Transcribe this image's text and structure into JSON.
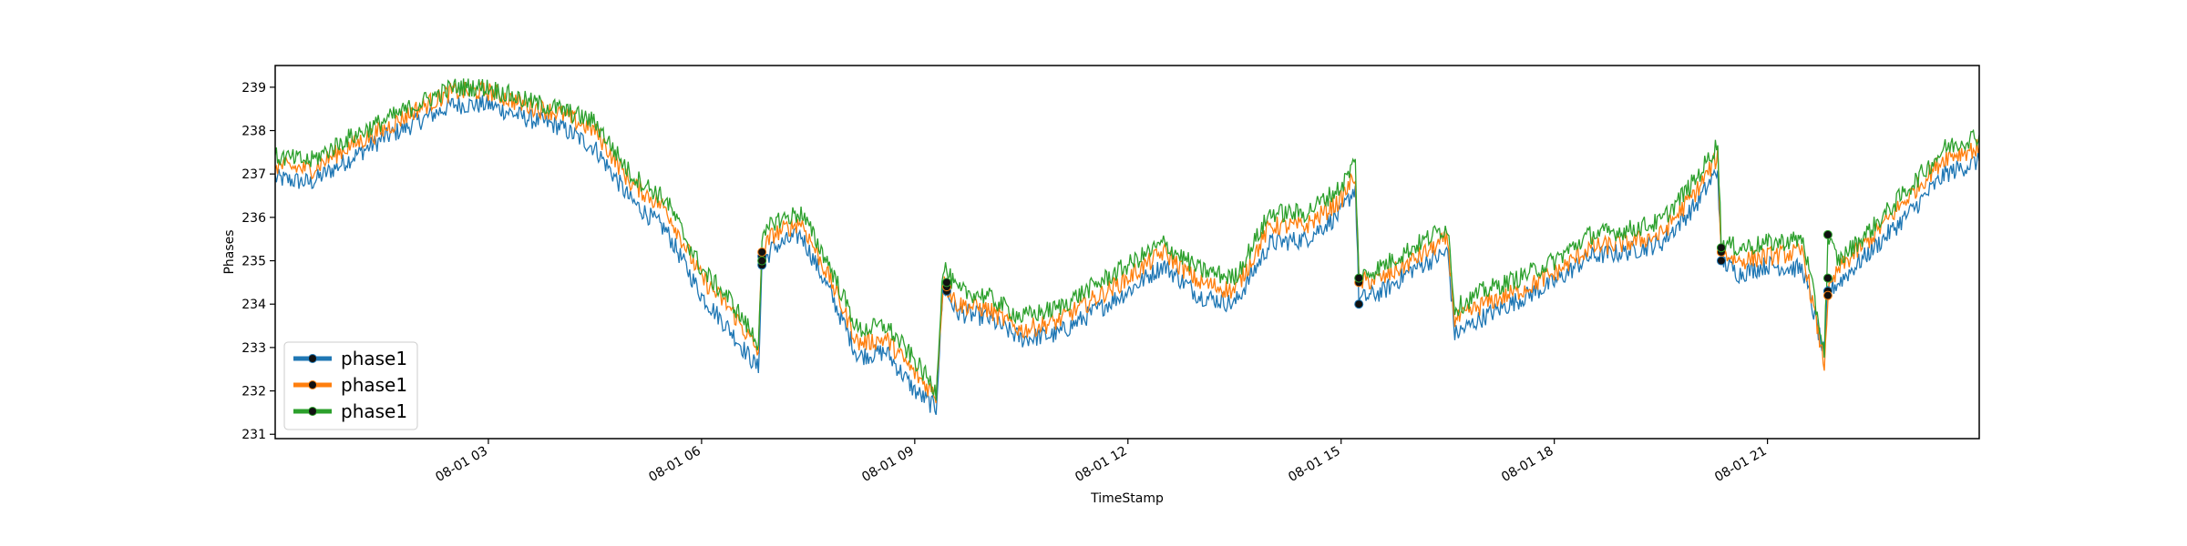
{
  "chart_data": {
    "type": "line",
    "title": "",
    "xlabel": "TimeStamp",
    "ylabel": "Phases",
    "xlim": [
      "08-01 00:00",
      "08-01 23:59"
    ],
    "ylim": [
      230.9,
      239.5
    ],
    "yticks": [
      231,
      232,
      233,
      234,
      235,
      236,
      237,
      238,
      239
    ],
    "xticks": [
      {
        "label": "08-01 03",
        "hour": 3
      },
      {
        "label": "08-01 06",
        "hour": 6
      },
      {
        "label": "08-01 09",
        "hour": 9
      },
      {
        "label": "08-01 12",
        "hour": 12
      },
      {
        "label": "08-01 15",
        "hour": 15
      },
      {
        "label": "08-01 18",
        "hour": 18
      },
      {
        "label": "08-01 21",
        "hour": 21
      }
    ],
    "grid": false,
    "legend_position": "lower-left",
    "series": [
      {
        "name": "phase1",
        "color": "#1f77b4",
        "x_hours": [
          0,
          0.5,
          1,
          1.5,
          2,
          2.5,
          3,
          3.5,
          4,
          4.5,
          5,
          5.5,
          6,
          6.4,
          6.8,
          6.85,
          7,
          7.4,
          7.8,
          8.2,
          8.6,
          9,
          9.3,
          9.4,
          9.6,
          10,
          10.5,
          11,
          11.5,
          12,
          12.5,
          13,
          13.5,
          14,
          14.5,
          15,
          15.2,
          15.25,
          15.6,
          16,
          16.5,
          16.6,
          17,
          17.5,
          18,
          18.5,
          19,
          19.5,
          20,
          20.3,
          20.35,
          20.6,
          21,
          21.5,
          21.8,
          21.85,
          22,
          22.5,
          23,
          23.5,
          23.98
        ],
        "y": [
          236.9,
          236.8,
          237.3,
          237.8,
          238.2,
          238.6,
          238.6,
          238.3,
          238.1,
          237.6,
          236.4,
          235.7,
          234.2,
          233.4,
          232.5,
          234.9,
          235.3,
          235.6,
          234.3,
          232.8,
          232.9,
          232.0,
          231.6,
          234.4,
          233.8,
          233.7,
          233.2,
          233.3,
          233.8,
          234.3,
          234.9,
          234.2,
          234.0,
          235.4,
          235.5,
          236.1,
          236.7,
          234.1,
          234.3,
          234.8,
          235.2,
          233.3,
          233.7,
          234.1,
          234.5,
          235.1,
          235.2,
          235.4,
          236.3,
          237.1,
          235.0,
          234.7,
          234.9,
          234.8,
          232.8,
          234.3,
          234.5,
          235.3,
          236.1,
          237.0,
          237.3
        ],
        "markers": [
          {
            "hour": 6.85,
            "y": 234.9
          },
          {
            "hour": 6.85,
            "y": 235.1
          },
          {
            "hour": 9.45,
            "y": 234.3
          },
          {
            "hour": 15.25,
            "y": 234.0
          },
          {
            "hour": 20.35,
            "y": 235.0
          },
          {
            "hour": 21.85,
            "y": 234.3
          }
        ]
      },
      {
        "name": "phase1",
        "color": "#ff7f0e",
        "x_hours": [
          0,
          0.5,
          1,
          1.5,
          2,
          2.5,
          3,
          3.5,
          4,
          4.5,
          5,
          5.5,
          6,
          6.4,
          6.8,
          6.85,
          7,
          7.4,
          7.8,
          8.2,
          8.6,
          9,
          9.3,
          9.4,
          9.6,
          10,
          10.5,
          11,
          11.5,
          12,
          12.5,
          13,
          13.5,
          14,
          14.5,
          15,
          15.2,
          15.25,
          15.6,
          16,
          16.5,
          16.6,
          17,
          17.5,
          18,
          18.5,
          19,
          19.5,
          20,
          20.3,
          20.35,
          20.6,
          21,
          21.5,
          21.8,
          21.85,
          22,
          22.5,
          23,
          23.5,
          23.98
        ],
        "y": [
          237.2,
          237.1,
          237.6,
          238.0,
          238.5,
          238.9,
          238.9,
          238.6,
          238.4,
          238.0,
          236.8,
          236.2,
          234.6,
          233.9,
          232.9,
          235.2,
          235.6,
          235.9,
          234.6,
          233.1,
          233.2,
          232.4,
          231.9,
          234.5,
          234.0,
          233.9,
          233.4,
          233.6,
          234.1,
          234.6,
          235.2,
          234.5,
          234.3,
          235.8,
          235.8,
          236.4,
          237.0,
          234.5,
          234.6,
          235.0,
          235.5,
          233.6,
          234.0,
          234.3,
          234.7,
          235.3,
          235.4,
          235.6,
          236.6,
          237.4,
          235.2,
          235.0,
          235.1,
          235.2,
          232.6,
          234.2,
          234.8,
          235.6,
          236.5,
          237.4,
          237.6
        ],
        "markers": [
          {
            "hour": 6.85,
            "y": 235.2
          },
          {
            "hour": 9.45,
            "y": 234.4
          },
          {
            "hour": 15.25,
            "y": 234.5
          },
          {
            "hour": 20.35,
            "y": 235.2
          },
          {
            "hour": 21.85,
            "y": 234.2
          }
        ]
      },
      {
        "name": "phase1",
        "color": "#2ca02c",
        "x_hours": [
          0,
          0.5,
          1,
          1.5,
          2,
          2.5,
          3,
          3.5,
          4,
          4.5,
          5,
          5.5,
          6,
          6.4,
          6.8,
          6.85,
          7,
          7.4,
          7.8,
          8.2,
          8.6,
          9,
          9.3,
          9.4,
          9.6,
          10,
          10.5,
          11,
          11.5,
          12,
          12.5,
          13,
          13.5,
          14,
          14.5,
          15,
          15.2,
          15.25,
          15.6,
          16,
          16.5,
          16.6,
          17,
          17.5,
          18,
          18.5,
          19,
          19.5,
          20,
          20.3,
          20.35,
          20.6,
          21,
          21.5,
          21.8,
          21.85,
          22,
          22.5,
          23,
          23.5,
          23.98
        ],
        "y": [
          237.4,
          237.3,
          237.8,
          238.2,
          238.6,
          239.0,
          239.0,
          238.7,
          238.5,
          238.2,
          237.0,
          236.4,
          234.8,
          234.1,
          233.1,
          235.4,
          235.9,
          236.1,
          234.9,
          233.4,
          233.5,
          232.7,
          232.0,
          234.9,
          234.3,
          234.2,
          233.7,
          233.9,
          234.4,
          234.9,
          235.4,
          234.8,
          234.6,
          236.1,
          236.1,
          236.7,
          237.3,
          234.6,
          234.9,
          235.3,
          235.8,
          233.9,
          234.3,
          234.6,
          235.0,
          235.6,
          235.7,
          235.9,
          236.9,
          237.7,
          235.4,
          235.3,
          235.4,
          235.5,
          232.9,
          235.5,
          235.0,
          235.8,
          236.7,
          237.6,
          237.9
        ],
        "markers": [
          {
            "hour": 6.85,
            "y": 235.0
          },
          {
            "hour": 9.45,
            "y": 234.5
          },
          {
            "hour": 15.25,
            "y": 234.6
          },
          {
            "hour": 20.35,
            "y": 235.3
          },
          {
            "hour": 21.85,
            "y": 235.6
          },
          {
            "hour": 21.85,
            "y": 234.6
          }
        ]
      }
    ]
  }
}
